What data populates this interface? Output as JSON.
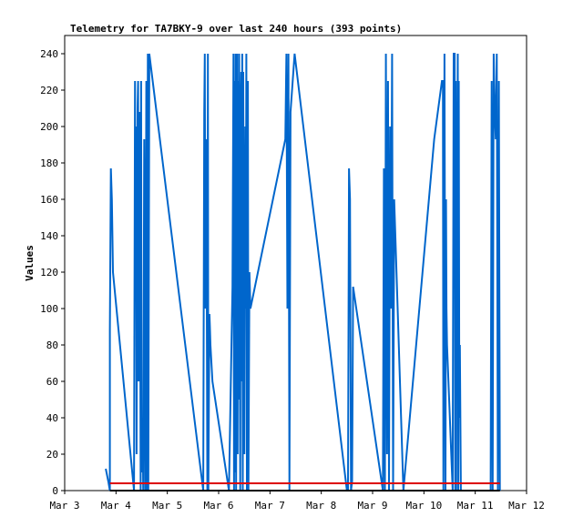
{
  "chart_data": {
    "type": "line",
    "title": "Telemetry for TA7BKY-9 over last 240 hours (393 points)",
    "ylabel": "Values",
    "xlabel": "",
    "ylim": [
      0,
      250
    ],
    "xlim": [
      0,
      9
    ],
    "yticks": [
      0,
      20,
      40,
      60,
      80,
      100,
      120,
      140,
      160,
      180,
      200,
      220,
      240
    ],
    "xticks": [
      {
        "value": 0,
        "label": "Mar 3"
      },
      {
        "value": 1,
        "label": "Mar 4"
      },
      {
        "value": 2,
        "label": "Mar 5"
      },
      {
        "value": 3,
        "label": "Mar 6"
      },
      {
        "value": 4,
        "label": "Mar 7"
      },
      {
        "value": 5,
        "label": "Mar 8"
      },
      {
        "value": 6,
        "label": "Mar 9"
      },
      {
        "value": 7,
        "label": "Mar 10"
      },
      {
        "value": 8,
        "label": "Mar 11"
      },
      {
        "value": 9,
        "label": "Mar 12"
      }
    ],
    "grid": false,
    "colors": {
      "telemetry": "#0066cc",
      "red": "#dd0000",
      "black": "#000000",
      "frame": "#000000"
    },
    "series": [
      {
        "color": "#0066cc",
        "x": [
          0.8,
          0.85,
          0.88,
          0.88,
          0.9,
          0.92,
          0.93,
          0.94,
          1.35,
          1.37,
          1.38,
          1.39,
          1.4,
          1.42,
          1.43,
          1.44,
          1.46,
          1.47,
          1.48,
          1.49,
          1.5,
          1.52,
          1.53,
          1.55,
          1.57,
          1.59,
          1.6,
          1.62,
          1.63,
          1.65,
          2.7,
          2.72,
          2.73,
          2.74,
          2.76,
          2.78,
          2.79,
          2.8,
          2.82,
          2.83,
          2.84,
          2.86,
          2.88,
          3.2,
          3.27,
          3.29,
          3.3,
          3.31,
          3.32,
          3.33,
          3.34,
          3.35,
          3.36,
          3.37,
          3.38,
          3.39,
          3.4,
          3.42,
          3.43,
          3.44,
          3.45,
          3.46,
          3.47,
          3.48,
          3.5,
          3.52,
          3.53,
          3.54,
          3.55,
          3.57,
          3.58,
          3.6,
          3.62,
          4.3,
          4.32,
          4.34,
          4.36,
          4.38,
          4.4,
          4.48,
          5.5,
          5.52,
          5.54,
          5.56,
          5.58,
          5.6,
          5.62,
          6.2,
          6.22,
          6.24,
          6.26,
          6.28,
          6.3,
          6.32,
          6.34,
          6.36,
          6.38,
          6.4,
          6.42,
          6.6,
          7.2,
          7.35,
          7.37,
          7.38,
          7.4,
          7.42,
          7.43,
          7.44,
          7.45,
          7.56,
          7.58,
          7.6,
          7.61,
          7.62,
          7.63,
          7.64,
          7.65,
          7.66,
          7.67,
          7.68,
          7.69,
          7.7,
          7.72,
          8.3,
          8.32,
          8.34,
          8.36,
          8.38,
          8.4,
          8.42,
          8.44,
          8.46,
          8.48
        ],
        "y": [
          12,
          5,
          0,
          88,
          177,
          160,
          140,
          120,
          0,
          225,
          110,
          200,
          20,
          210,
          225,
          60,
          208,
          120,
          0,
          225,
          10,
          40,
          0,
          193,
          0,
          225,
          0,
          240,
          0,
          240,
          0,
          208,
          240,
          100,
          193,
          0,
          240,
          0,
          97,
          90,
          80,
          70,
          60,
          0,
          112,
          240,
          0,
          225,
          10,
          240,
          0,
          208,
          240,
          20,
          225,
          50,
          240,
          0,
          208,
          230,
          60,
          240,
          0,
          230,
          20,
          200,
          100,
          240,
          0,
          225,
          0,
          120,
          100,
          193,
          240,
          100,
          240,
          0,
          208,
          240,
          0,
          0,
          177,
          160,
          0,
          5,
          112,
          0,
          177,
          0,
          240,
          20,
          225,
          0,
          200,
          100,
          240,
          0,
          160,
          0,
          193,
          225,
          225,
          0,
          240,
          0,
          160,
          100,
          80,
          0,
          240,
          240,
          0,
          225,
          0,
          193,
          160,
          240,
          0,
          225,
          40,
          80,
          0,
          0,
          225,
          0,
          240,
          208,
          193,
          240,
          0,
          225,
          0
        ],
        "name": ""
      },
      {
        "color": "#dd0000",
        "x": [
          0.88,
          8.48
        ],
        "y": [
          4,
          4
        ],
        "name": ""
      },
      {
        "color": "#000000",
        "x": [
          0.88,
          8.48
        ],
        "y": [
          0,
          0
        ],
        "name": ""
      }
    ]
  }
}
